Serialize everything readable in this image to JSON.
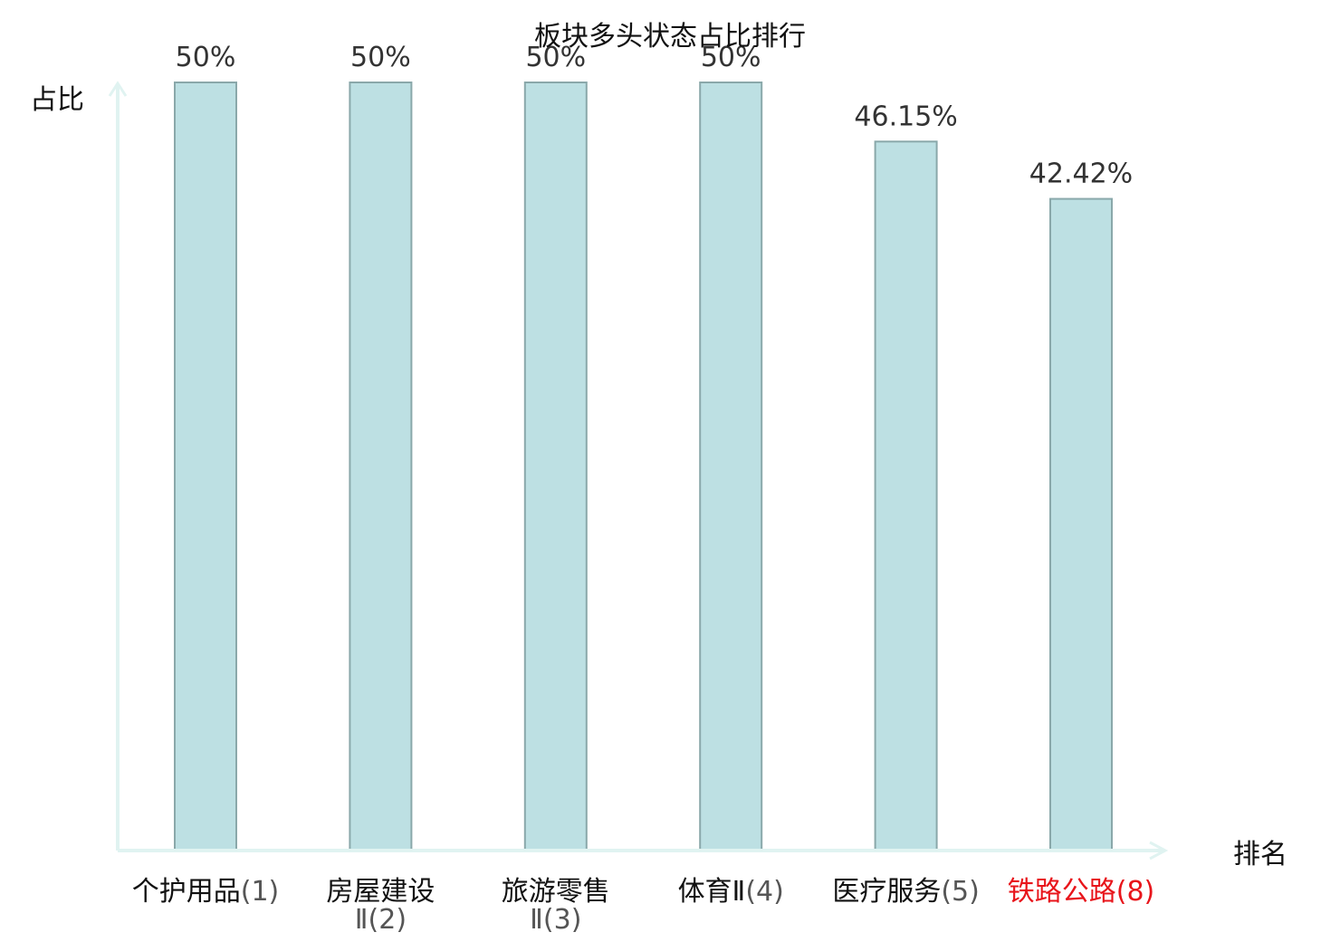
{
  "chart_data": {
    "type": "bar",
    "title": "板块多头状态占比排行",
    "xlabel": "排名",
    "ylabel": "占比",
    "categories": [
      {
        "name": "个护用品",
        "rank": "(1)",
        "highlight": false
      },
      {
        "name": "房屋建设Ⅱ",
        "rank": "(2)",
        "highlight": false
      },
      {
        "name": "旅游零售Ⅱ",
        "rank": "(3)",
        "highlight": false
      },
      {
        "name": "体育Ⅱ",
        "rank": "(4)",
        "highlight": false
      },
      {
        "name": "医疗服务",
        "rank": "(5)",
        "highlight": false
      },
      {
        "name": "铁路公路",
        "rank": "(8)",
        "highlight": true
      }
    ],
    "values": [
      50,
      50,
      50,
      50,
      46.15,
      42.42
    ],
    "value_labels": [
      "50%",
      "50%",
      "50%",
      "50%",
      "46.15%",
      "42.42%"
    ],
    "ylim": [
      0,
      50
    ],
    "grid": false,
    "legend": "none"
  },
  "colors": {
    "bar_fill": "#bde0e3",
    "bar_stroke": "#8aa8aa",
    "axis": "#e0f3f1",
    "highlight": "#e8151b",
    "text": "#111111",
    "label": "#333333",
    "rank": "#555555"
  }
}
